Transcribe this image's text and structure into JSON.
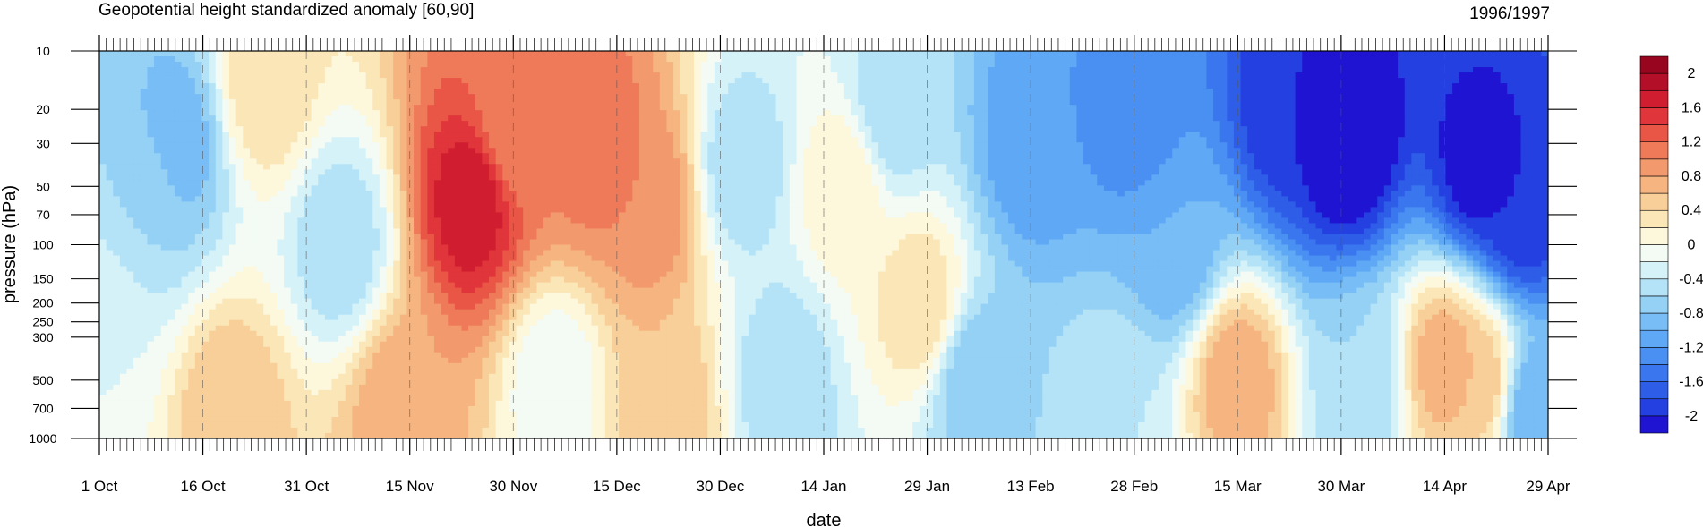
{
  "chart_data": {
    "type": "heatmap",
    "title": "Geopotential height standardized anomaly [60,90]",
    "title_right": "1996/1997",
    "xlabel": "date",
    "ylabel": "pressure (hPa)",
    "y_scale": "log",
    "y_reversed": true,
    "ylim": [
      1000,
      10
    ],
    "y_ticks": [
      {
        "value": 10,
        "label": "10"
      },
      {
        "value": 20,
        "label": "20"
      },
      {
        "value": 30,
        "label": "30"
      },
      {
        "value": 50,
        "label": "50"
      },
      {
        "value": 70,
        "label": "70"
      },
      {
        "value": 100,
        "label": "100"
      },
      {
        "value": 150,
        "label": "150"
      },
      {
        "value": 200,
        "label": "200"
      },
      {
        "value": 250,
        "label": "250"
      },
      {
        "value": 300,
        "label": "300"
      },
      {
        "value": 500,
        "label": "500"
      },
      {
        "value": 700,
        "label": "700"
      },
      {
        "value": 1000,
        "label": "1000"
      }
    ],
    "xlim": [
      "1996-10-01",
      "1997-04-29"
    ],
    "x_ticks": [
      {
        "date": "1996-10-01",
        "label": "1 Oct"
      },
      {
        "date": "1996-10-16",
        "label": "16 Oct"
      },
      {
        "date": "1996-10-31",
        "label": "31 Oct"
      },
      {
        "date": "1996-11-15",
        "label": "15 Nov"
      },
      {
        "date": "1996-11-30",
        "label": "30 Nov"
      },
      {
        "date": "1996-12-15",
        "label": "15 Dec"
      },
      {
        "date": "1996-12-30",
        "label": "30 Dec"
      },
      {
        "date": "1997-01-14",
        "label": "14 Jan"
      },
      {
        "date": "1997-01-29",
        "label": "29 Jan"
      },
      {
        "date": "1997-02-13",
        "label": "13 Feb"
      },
      {
        "date": "1997-02-28",
        "label": "28 Feb"
      },
      {
        "date": "1997-03-15",
        "label": "15 Mar"
      },
      {
        "date": "1997-03-30",
        "label": "30 Mar"
      },
      {
        "date": "1997-04-14",
        "label": "14 Apr"
      },
      {
        "date": "1997-04-29",
        "label": "29 Apr"
      }
    ],
    "colorbar": {
      "levels": [
        -2.2,
        -2.0,
        -1.8,
        -1.6,
        -1.4,
        -1.2,
        -1.0,
        -0.8,
        -0.6,
        -0.4,
        -0.2,
        0,
        0.2,
        0.4,
        0.6,
        0.8,
        1.0,
        1.2,
        1.4,
        1.6,
        1.8,
        2.0,
        2.2
      ],
      "colors": [
        "#1e14d2",
        "#2440e0",
        "#2e5de8",
        "#3a76ee",
        "#4a90f2",
        "#5ea8f5",
        "#78bdf5",
        "#94d1f5",
        "#b4e3f7",
        "#d6f2f9",
        "#f3fbf4",
        "#fdf7dc",
        "#fbe6b8",
        "#f8cf98",
        "#f5b480",
        "#f29a6e",
        "#ee7a5a",
        "#e95646",
        "#e0353a",
        "#d01e30",
        "#b40f28",
        "#98051f"
      ],
      "labels": [
        {
          "value": 2.0,
          "label": "2"
        },
        {
          "value": 1.6,
          "label": "1.6"
        },
        {
          "value": 1.2,
          "label": "1.2"
        },
        {
          "value": 0.8,
          "label": "0.8"
        },
        {
          "value": 0.4,
          "label": "0.4"
        },
        {
          "value": 0,
          "label": "0"
        },
        {
          "value": -0.4,
          "label": "-0.4"
        },
        {
          "value": -0.8,
          "label": "-0.8"
        },
        {
          "value": -1.2,
          "label": "-1.2"
        },
        {
          "value": -1.6,
          "label": "-1.6"
        },
        {
          "value": -2.0,
          "label": "-2"
        }
      ]
    },
    "features": [
      {
        "date": "1996-10-01",
        "pressure": 300,
        "anomaly": -0.2
      },
      {
        "date": "1996-10-08",
        "pressure": 50,
        "anomaly": -0.6
      },
      {
        "date": "1996-10-12",
        "pressure": 30,
        "anomaly": -1.0
      },
      {
        "date": "1996-10-20",
        "pressure": 700,
        "anomaly": 0.6
      },
      {
        "date": "1996-10-25",
        "pressure": 15,
        "anomaly": 0.4
      },
      {
        "date": "1996-11-05",
        "pressure": 100,
        "anomaly": -0.6
      },
      {
        "date": "1996-11-14",
        "pressure": 700,
        "anomaly": 0.8
      },
      {
        "date": "1996-11-24",
        "pressure": 60,
        "anomaly": 1.8
      },
      {
        "date": "1996-11-30",
        "pressure": 25,
        "anomaly": 1.0
      },
      {
        "date": "1996-12-06",
        "pressure": 500,
        "anomaly": -0.2
      },
      {
        "date": "1996-12-12",
        "pressure": 30,
        "anomaly": 1.2
      },
      {
        "date": "1996-12-20",
        "pressure": 60,
        "anomaly": 1.0
      },
      {
        "date": "1996-12-22",
        "pressure": 700,
        "anomaly": 0.6
      },
      {
        "date": "1997-01-02",
        "pressure": 40,
        "anomaly": -0.6
      },
      {
        "date": "1997-01-08",
        "pressure": 500,
        "anomaly": -0.6
      },
      {
        "date": "1997-01-17",
        "pressure": 50,
        "anomaly": 0.2
      },
      {
        "date": "1997-01-24",
        "pressure": 20,
        "anomaly": -0.6
      },
      {
        "date": "1997-01-28",
        "pressure": 200,
        "anomaly": 0.4
      },
      {
        "date": "1997-02-05",
        "pressure": 500,
        "anomaly": -0.8
      },
      {
        "date": "1997-02-13",
        "pressure": 30,
        "anomaly": -1.2
      },
      {
        "date": "1997-02-28",
        "pressure": 20,
        "anomaly": -1.4
      },
      {
        "date": "1997-02-25",
        "pressure": 700,
        "anomaly": -0.4
      },
      {
        "date": "1997-03-06",
        "pressure": 100,
        "anomaly": -1.0
      },
      {
        "date": "1997-03-15",
        "pressure": 500,
        "anomaly": 0.8
      },
      {
        "date": "1997-03-22",
        "pressure": 20,
        "anomaly": -2.0
      },
      {
        "date": "1997-03-31",
        "pressure": 30,
        "anomaly": -2.4
      },
      {
        "date": "1997-04-02",
        "pressure": 500,
        "anomaly": -0.6
      },
      {
        "date": "1997-04-14",
        "pressure": 400,
        "anomaly": 0.8
      },
      {
        "date": "1997-04-19",
        "pressure": 40,
        "anomaly": -2.2
      },
      {
        "date": "1997-04-19",
        "pressure": 500,
        "anomaly": 0.6
      },
      {
        "date": "1997-04-25",
        "pressure": 70,
        "anomaly": -2.0
      },
      {
        "date": "1997-04-27",
        "pressure": 700,
        "anomaly": -1.0
      }
    ]
  }
}
